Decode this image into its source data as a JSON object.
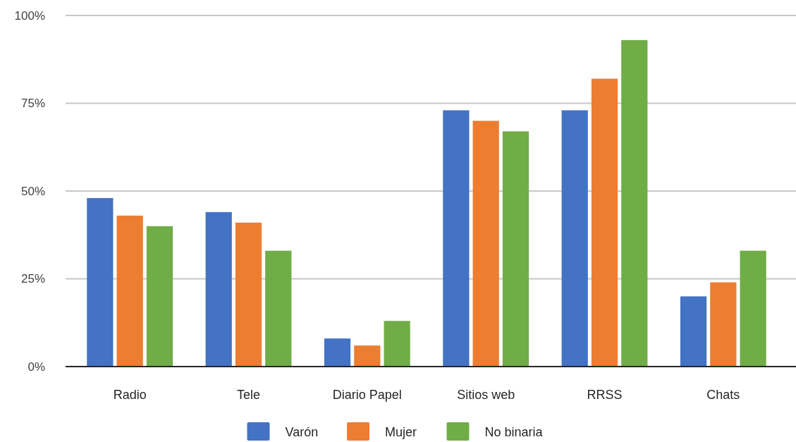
{
  "chart_data": {
    "type": "bar",
    "categories": [
      "Radio",
      "Tele",
      "Diario Papel",
      "Sitios web",
      "RRSS",
      "Chats"
    ],
    "series": [
      {
        "name": "Varón",
        "color": "#4472c4",
        "values": [
          48,
          44,
          8,
          73,
          73,
          20
        ]
      },
      {
        "name": "Mujer",
        "color": "#ed7d31",
        "values": [
          43,
          41,
          6,
          70,
          82,
          24
        ]
      },
      {
        "name": "No binaria",
        "color": "#70ad47",
        "values": [
          40,
          33,
          13,
          67,
          93,
          33
        ]
      }
    ],
    "ylim": [
      0,
      100
    ],
    "yticks": [
      {
        "value": 0,
        "label": "0%"
      },
      {
        "value": 25,
        "label": "25%"
      },
      {
        "value": 50,
        "label": "50%"
      },
      {
        "value": 75,
        "label": "75%"
      },
      {
        "value": 100,
        "label": "100%"
      }
    ],
    "grid": "y",
    "legend": "bottom"
  }
}
